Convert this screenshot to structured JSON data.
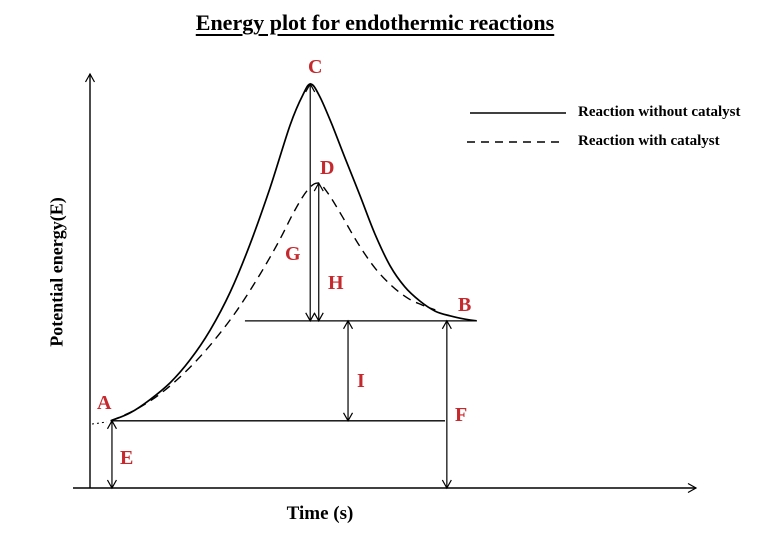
{
  "title": "Energy plot for endothermic reactions",
  "axes": {
    "x_label": "Time (s)",
    "y_label": "Potential energy(E)"
  },
  "legend": {
    "without_catalyst": "Reaction without catalyst",
    "with_catalyst": "Reaction with catalyst"
  },
  "labels": {
    "A": {
      "text": "A"
    },
    "B": {
      "text": "B"
    },
    "C": {
      "text": "C"
    },
    "D": {
      "text": "D"
    },
    "E": {
      "text": "E"
    },
    "F": {
      "text": "F"
    },
    "G": {
      "text": "G"
    },
    "H": {
      "text": "H"
    },
    "I": {
      "text": "I"
    }
  },
  "colors": {
    "annotation_red": "#C5282D",
    "line_black": "#000000",
    "background": "#FFFFFF"
  },
  "chart_data": {
    "type": "line",
    "title": "Energy plot for endothermic reactions",
    "xlabel": "Time (s)",
    "ylabel": "Potential energy(E)",
    "x_unit": "arbitrary time units",
    "y_unit": "arbitrary energy units",
    "xlim": [
      0,
      10
    ],
    "ylim": [
      0,
      10
    ],
    "grid": false,
    "legend_position": "upper right",
    "series": [
      {
        "name": "Reaction without catalyst",
        "style": "solid",
        "points": [
          [
            0.34,
            1.6
          ],
          [
            0.66,
            1.79
          ],
          [
            0.98,
            2.1
          ],
          [
            1.31,
            2.5
          ],
          [
            1.64,
            3.05
          ],
          [
            1.97,
            3.76
          ],
          [
            2.3,
            4.67
          ],
          [
            2.62,
            5.79
          ],
          [
            2.95,
            7.14
          ],
          [
            3.28,
            8.64
          ],
          [
            3.49,
            9.36
          ],
          [
            3.62,
            9.62
          ],
          [
            3.77,
            9.31
          ],
          [
            3.97,
            8.64
          ],
          [
            4.18,
            7.86
          ],
          [
            4.43,
            6.95
          ],
          [
            4.67,
            6.05
          ],
          [
            4.92,
            5.29
          ],
          [
            5.16,
            4.79
          ],
          [
            5.41,
            4.45
          ],
          [
            5.66,
            4.21
          ],
          [
            5.9,
            4.1
          ],
          [
            6.15,
            4.02
          ],
          [
            6.34,
            3.98
          ]
        ]
      },
      {
        "name": "Reaction with catalyst",
        "style": "dashed",
        "points": [
          [
            0.34,
            1.6
          ],
          [
            0.74,
            1.86
          ],
          [
            1.15,
            2.24
          ],
          [
            1.56,
            2.76
          ],
          [
            1.97,
            3.4
          ],
          [
            2.38,
            4.17
          ],
          [
            2.75,
            5.0
          ],
          [
            3.08,
            5.83
          ],
          [
            3.36,
            6.62
          ],
          [
            3.57,
            7.1
          ],
          [
            3.74,
            7.26
          ],
          [
            3.9,
            7.02
          ],
          [
            4.13,
            6.48
          ],
          [
            4.39,
            5.83
          ],
          [
            4.67,
            5.24
          ],
          [
            4.95,
            4.81
          ],
          [
            5.21,
            4.52
          ],
          [
            5.44,
            4.36
          ],
          [
            5.66,
            4.24
          ]
        ]
      }
    ],
    "key_levels": {
      "reactant_energy_A": 1.6,
      "product_energy_B": 3.98,
      "peak_without_catalyst_C": 9.62,
      "peak_with_catalyst_D": 7.26
    },
    "point_markers": [
      {
        "id": "A",
        "t": 0.34,
        "E": 1.6
      },
      {
        "id": "B",
        "t": 6.2,
        "E": 3.98
      },
      {
        "id": "C",
        "t": 3.62,
        "E": 9.62
      },
      {
        "id": "D",
        "t": 3.74,
        "E": 7.26
      }
    ],
    "reference_lines": [
      {
        "name": "product-energy-level",
        "E": 3.98,
        "t_range": [
          2.54,
          6.34
        ]
      },
      {
        "name": "reactant-energy-level",
        "E": 1.6,
        "t_range": [
          0.34,
          5.82
        ]
      }
    ],
    "interval_markers": [
      {
        "id": "E",
        "at_t": 0.36,
        "from_E": 0.0,
        "to_E": 1.6
      },
      {
        "id": "F",
        "at_t": 5.85,
        "from_E": 0.0,
        "to_E": 3.98
      },
      {
        "id": "G",
        "at_t": 3.61,
        "from_E": 3.98,
        "to_E": 9.62
      },
      {
        "id": "H",
        "at_t": 3.75,
        "from_E": 3.98,
        "to_E": 7.26
      },
      {
        "id": "I",
        "at_t": 4.23,
        "from_E": 1.6,
        "to_E": 3.98
      }
    ]
  }
}
